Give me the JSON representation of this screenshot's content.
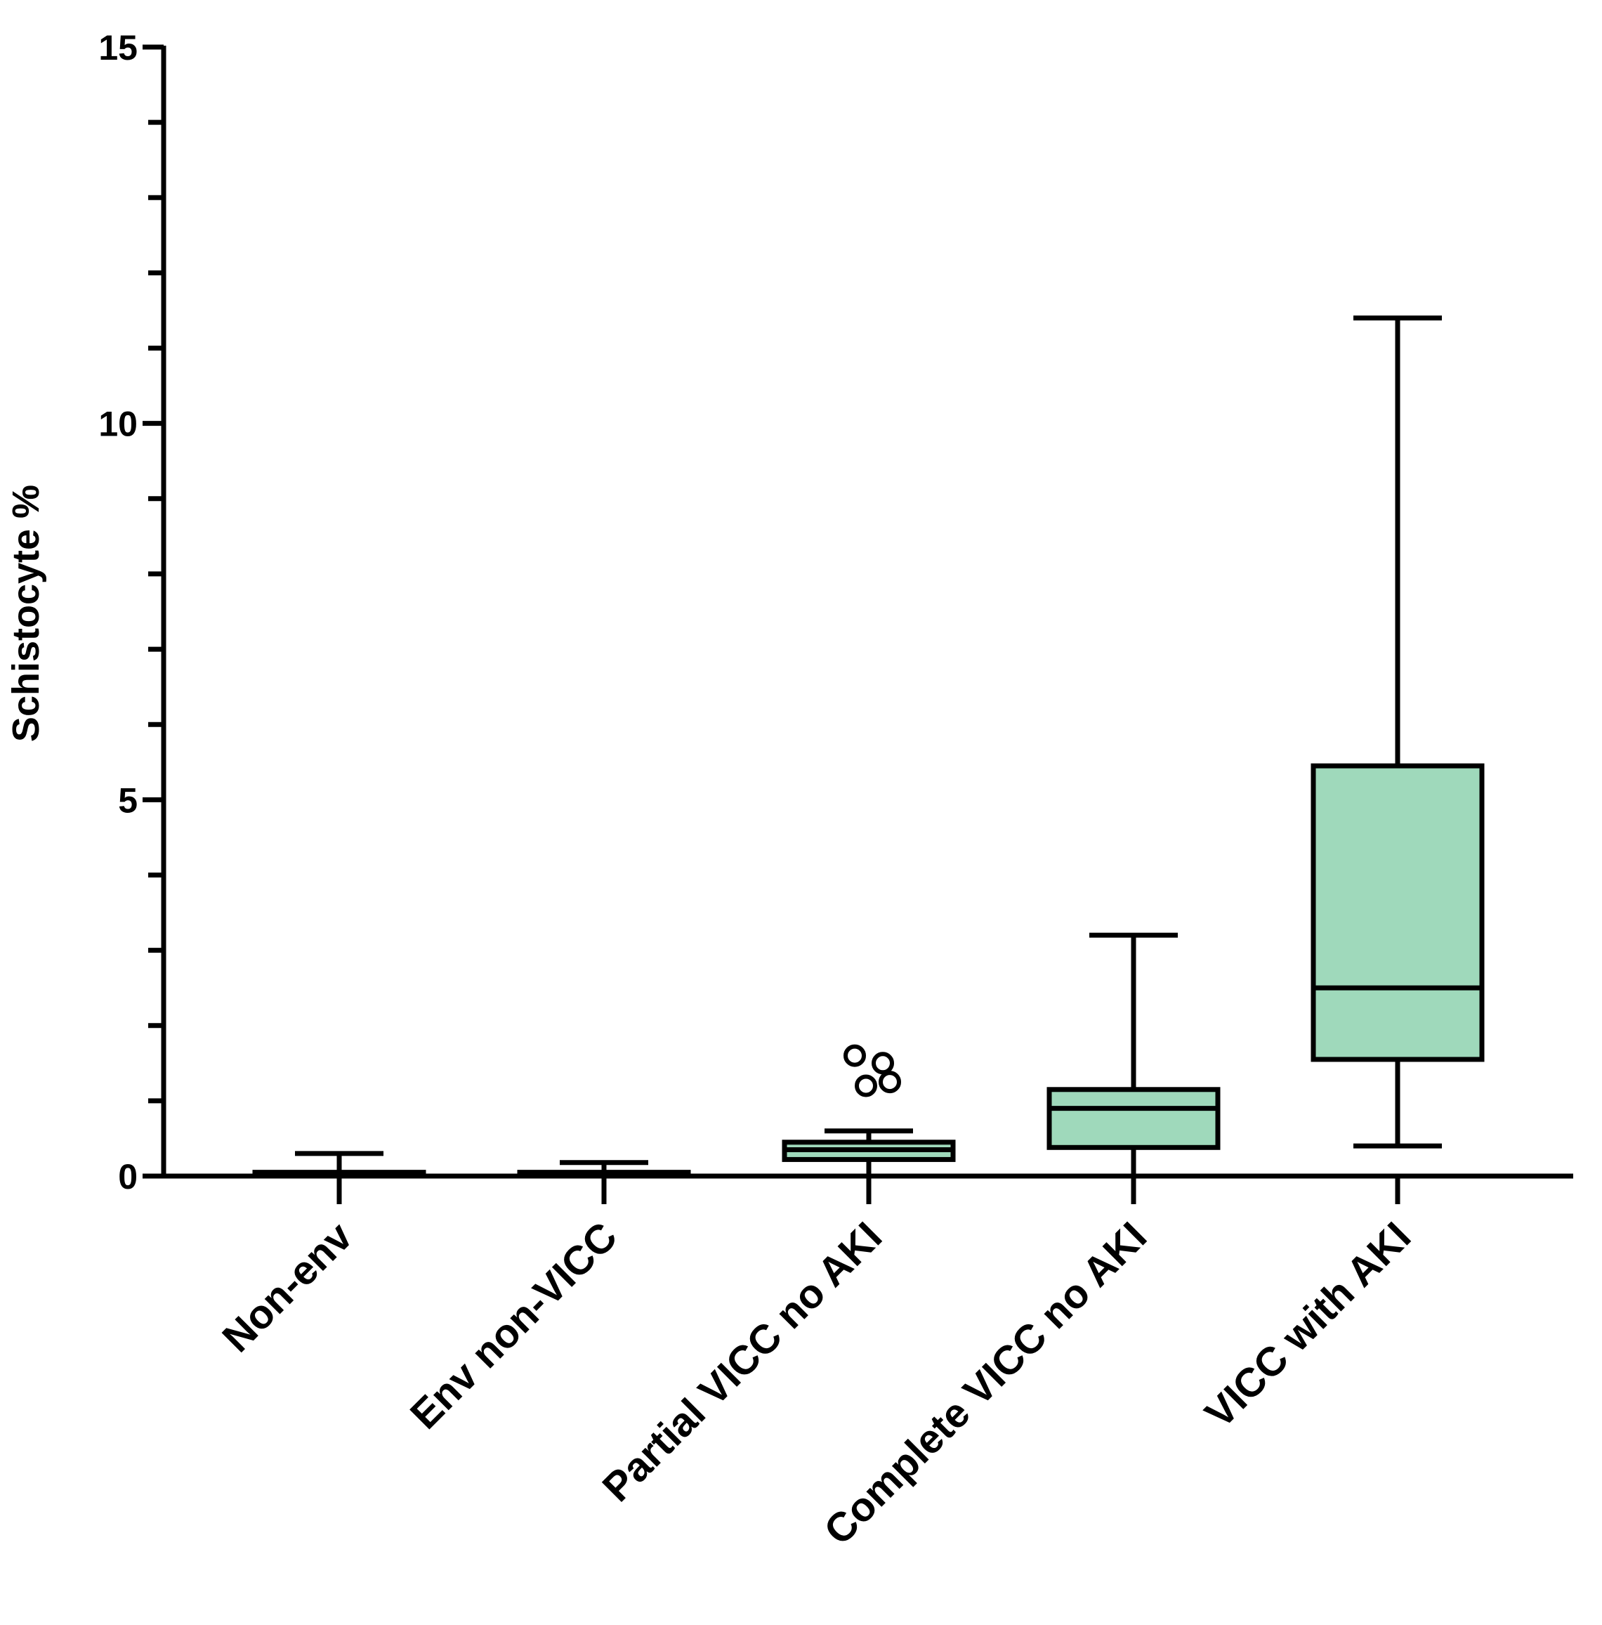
{
  "chart_data": {
    "type": "box",
    "title": "",
    "xlabel": "",
    "ylabel": "Schistocyte %",
    "ylim": [
      0,
      15
    ],
    "yticks": [
      0,
      5,
      10,
      15
    ],
    "y_minor_step": 1,
    "grid": false,
    "box_fill": "#9fd9bb",
    "line_color": "#000000",
    "categories": [
      "Non-env",
      "Env non-VICC",
      "Partial VICC no AKI",
      "Complete VICC no AKI",
      "VICC with AKI"
    ],
    "boxes": [
      {
        "category": "Non-env",
        "whisker_low": 0.0,
        "q1": 0.0,
        "median": 0.0,
        "q3": 0.05,
        "whisker_high": 0.3,
        "outliers": []
      },
      {
        "category": "Env non-VICC",
        "whisker_low": 0.0,
        "q1": 0.0,
        "median": 0.0,
        "q3": 0.05,
        "whisker_high": 0.18,
        "outliers": []
      },
      {
        "category": "Partial VICC no AKI",
        "whisker_low": 0.0,
        "q1": 0.22,
        "median": 0.35,
        "q3": 0.45,
        "whisker_high": 0.6,
        "outliers": [
          1.6,
          1.5,
          1.2,
          1.25
        ]
      },
      {
        "category": "Complete VICC no AKI",
        "whisker_low": 0.0,
        "q1": 0.38,
        "median": 0.9,
        "q3": 1.15,
        "whisker_high": 3.2,
        "outliers": []
      },
      {
        "category": "VICC with AKI",
        "whisker_low": 0.4,
        "q1": 1.55,
        "median": 2.5,
        "q3": 5.45,
        "whisker_high": 11.4,
        "outliers": []
      }
    ]
  }
}
